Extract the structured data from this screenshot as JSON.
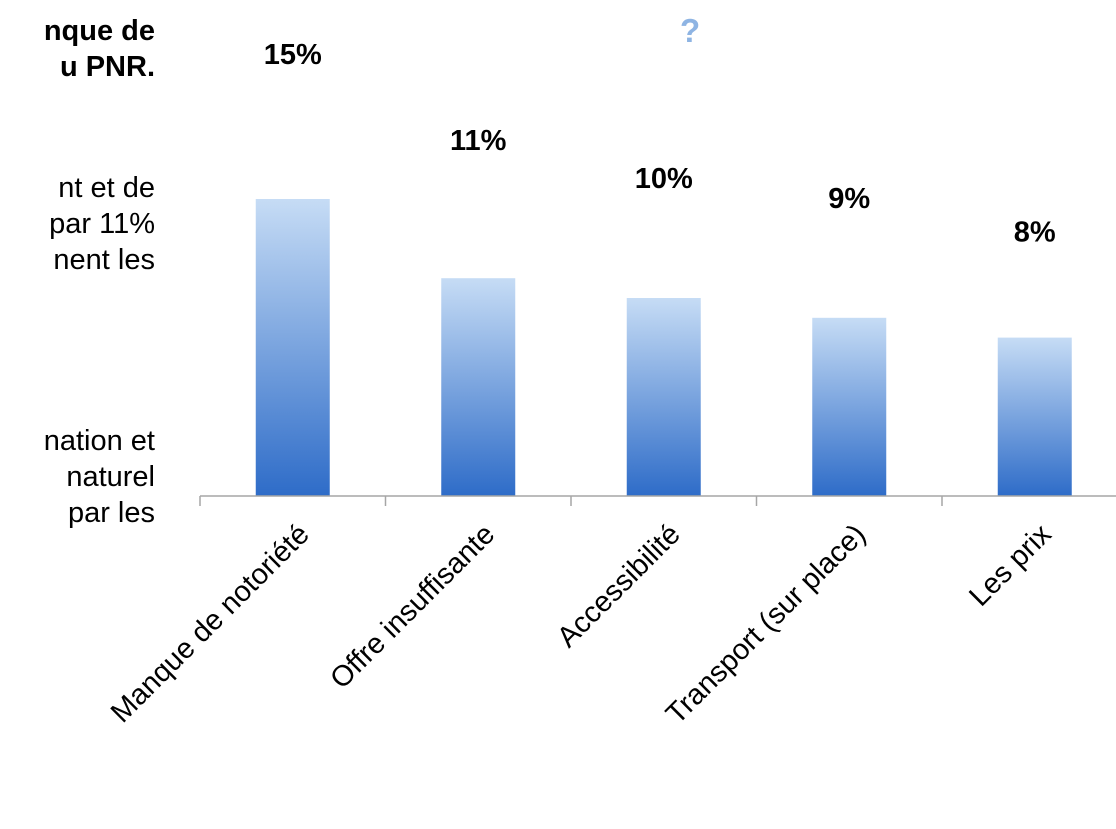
{
  "side_text": {
    "block1": [
      "nque de",
      "u PNR."
    ],
    "block2": [
      "nt et de",
      "par 11%",
      "nent les"
    ],
    "block3": [
      "nation et",
      "naturel",
      "par les"
    ]
  },
  "heading_fragment": "?",
  "colors": {
    "bar_top": "#C6DCF5",
    "bar_bottom": "#2E6CC8",
    "axis": "#A6A6A6",
    "heading": "#8EB4E3"
  },
  "chart_data": {
    "type": "bar",
    "categories": [
      "Manque de notoriété",
      "Offre insuffisante",
      "Accessibilité",
      "Transport (sur place)",
      "Les prix"
    ],
    "values": [
      15,
      11,
      10,
      9,
      8
    ],
    "data_labels": [
      "15%",
      "11%",
      "10%",
      "9%",
      "8%"
    ],
    "title": "",
    "xlabel": "",
    "ylabel": "",
    "ylim": [
      0,
      16
    ],
    "grid": false,
    "legend": "none"
  }
}
